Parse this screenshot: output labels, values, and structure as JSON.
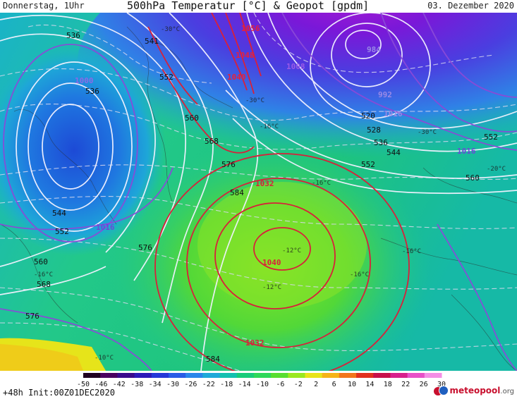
{
  "header": {
    "day": "Donnerstag, 1Uhr",
    "title": "500hPa Temperatur [°C] & Geopot [gpdm]",
    "date": "03. Dezember 2020"
  },
  "footer": {
    "run": "+48h  Init:00Z01DEC2020",
    "logo_main": "meteopool",
    "logo_tld": ".org"
  },
  "colorbar": {
    "ticks": [
      "-50",
      "-46",
      "-42",
      "-38",
      "-34",
      "-30",
      "-26",
      "-22",
      "-18",
      "-14",
      "-10",
      "-6",
      "-2",
      "2",
      "6",
      "10",
      "14",
      "18",
      "22",
      "26",
      "30"
    ],
    "colors": [
      "#200020",
      "#4a0060",
      "#3a0a8c",
      "#2c1ab8",
      "#2638d8",
      "#2a5ce6",
      "#2a86ea",
      "#1fa9d8",
      "#14c0b0",
      "#18cc7a",
      "#2ed85a",
      "#58de30",
      "#9ae820",
      "#e8e41a",
      "#f6b418",
      "#f2761c",
      "#e2301e",
      "#c8104a",
      "#d8208c",
      "#e850c8",
      "#f48ee6"
    ]
  },
  "contours": {
    "geopot_labels": [
      "536",
      "541",
      "552",
      "560",
      "568",
      "576",
      "584",
      "536",
      "544",
      "552",
      "560",
      "568",
      "576",
      "584",
      "520",
      "528",
      "536",
      "544",
      "552",
      "552",
      "560",
      "576"
    ],
    "pressure_labels": [
      "1056",
      "1048",
      "1040",
      "1032",
      "1040",
      "1032",
      "1008",
      "1016",
      "1016",
      "1000",
      "984",
      "992",
      "1016"
    ],
    "temp_labels": [
      "-30°C",
      "-30°C",
      "-16°C",
      "-16°C",
      "-16°C",
      "-16°C",
      "-16°C",
      "-10°C",
      "-12°C",
      "-12°C",
      "-20°C",
      "-30°C"
    ]
  }
}
